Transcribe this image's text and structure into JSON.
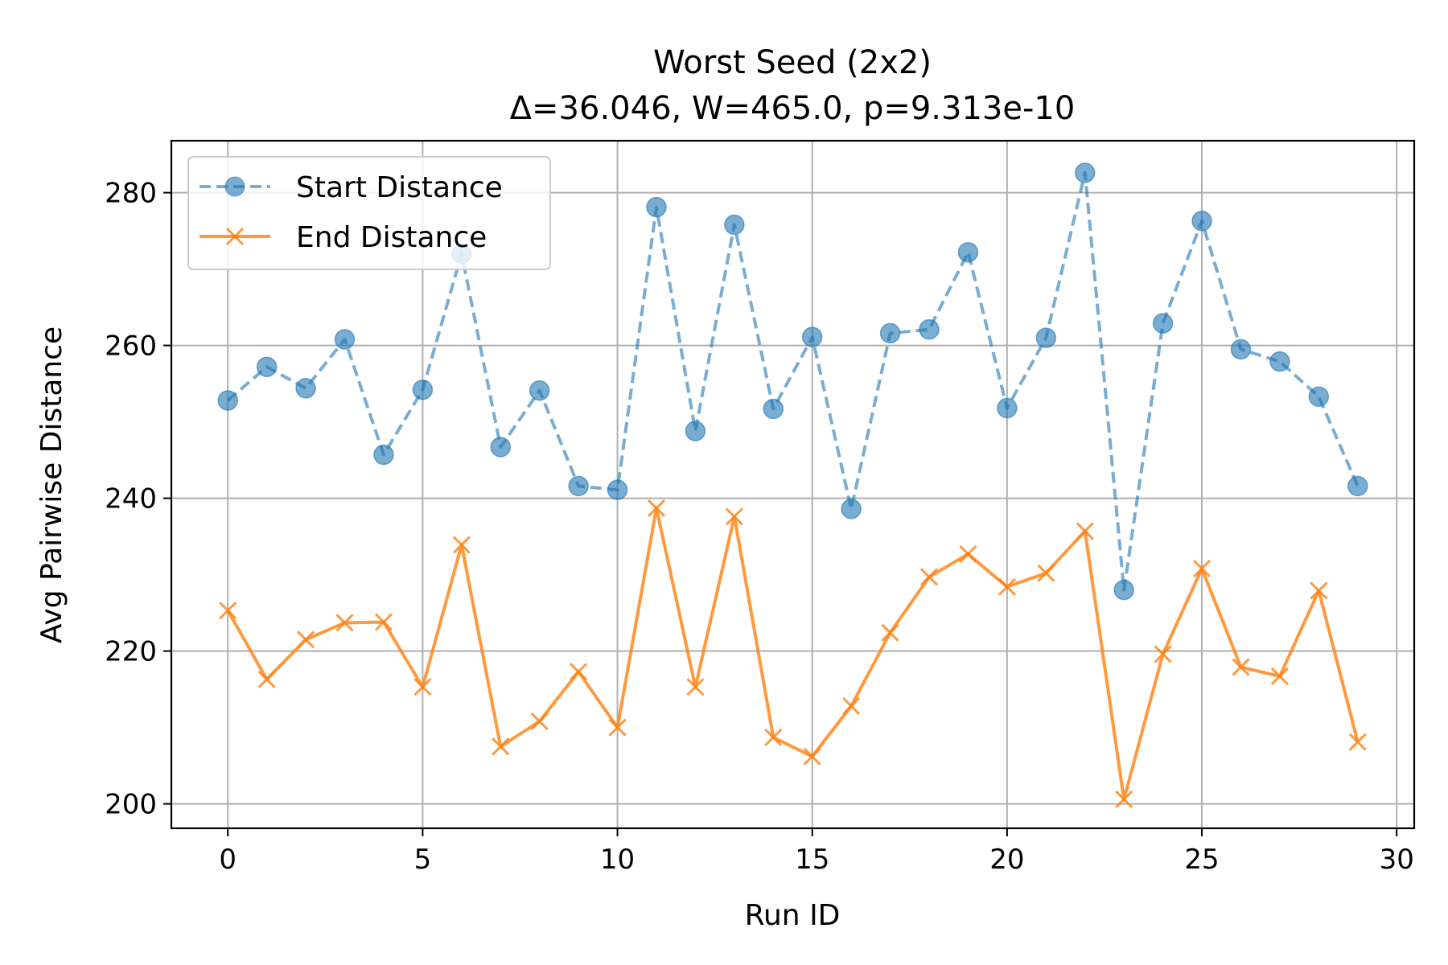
{
  "chart_data": {
    "type": "line",
    "title": "Worst Seed (2x2)",
    "subtitle": "Δ=36.046, W=465.0, p=9.313e-10",
    "xlabel": "Run ID",
    "ylabel": "Avg Pairwise Distance",
    "xlim": [
      -1.45,
      30.45
    ],
    "ylim": [
      196.8,
      286.8
    ],
    "xticks": [
      0,
      5,
      10,
      15,
      20,
      25,
      30
    ],
    "yticks": [
      200,
      220,
      240,
      260,
      280
    ],
    "grid": true,
    "legend_position": "upper-left",
    "x": [
      0,
      1,
      2,
      3,
      4,
      5,
      6,
      7,
      8,
      9,
      10,
      11,
      12,
      13,
      14,
      15,
      16,
      17,
      18,
      19,
      20,
      21,
      22,
      23,
      24,
      25,
      26,
      27,
      28,
      29
    ],
    "series": [
      {
        "name": "Start Distance",
        "color": "#1f77b4",
        "linestyle": "dashed",
        "marker": "circle",
        "alpha": 0.6,
        "values": [
          252.8,
          257.2,
          254.4,
          260.8,
          245.7,
          254.2,
          272.0,
          246.7,
          254.1,
          241.6,
          241.1,
          278.1,
          248.8,
          275.8,
          251.7,
          261.1,
          238.6,
          261.6,
          262.1,
          272.2,
          251.8,
          261.0,
          282.6,
          228.0,
          262.9,
          276.3,
          259.5,
          257.9,
          253.3,
          241.6
        ]
      },
      {
        "name": "End Distance",
        "color": "#ff7f0e",
        "linestyle": "solid",
        "marker": "x",
        "alpha": 0.8,
        "values": [
          225.3,
          216.3,
          221.5,
          223.7,
          223.8,
          215.3,
          233.9,
          207.5,
          210.8,
          217.3,
          210.0,
          238.7,
          215.3,
          237.6,
          208.7,
          206.2,
          212.8,
          222.4,
          229.7,
          232.7,
          228.4,
          230.2,
          235.7,
          200.6,
          219.6,
          230.8,
          217.9,
          216.7,
          227.9,
          208.1
        ]
      }
    ]
  }
}
